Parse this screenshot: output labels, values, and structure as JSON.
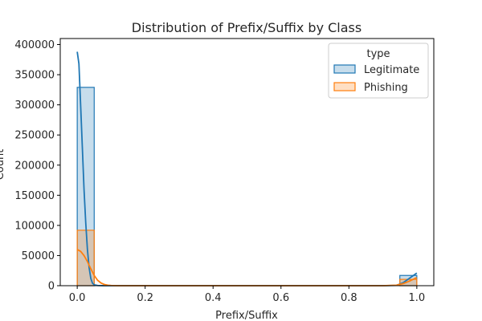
{
  "chart_data": {
    "type": "bar",
    "subtype": "histogram-with-kde",
    "title": "Distribution of Prefix/Suffix by Class",
    "xlabel": "Prefix/Suffix",
    "ylabel": "Count",
    "xlim": [
      -0.05,
      1.05
    ],
    "ylim": [
      0,
      410000
    ],
    "x_ticks": [
      0.0,
      0.2,
      0.4,
      0.6,
      0.8,
      1.0
    ],
    "x_tick_labels": [
      "0.0",
      "0.2",
      "0.4",
      "0.6",
      "0.8",
      "1.0"
    ],
    "y_ticks": [
      0,
      50000,
      100000,
      150000,
      200000,
      250000,
      300000,
      350000,
      400000
    ],
    "y_tick_labels": [
      "0",
      "50000",
      "100000",
      "150000",
      "200000",
      "250000",
      "300000",
      "350000",
      "400000"
    ],
    "bin_width": 0.05,
    "legend": {
      "title": "type",
      "placement": "top-right"
    },
    "series": [
      {
        "name": "Legitimate",
        "color": "#1f77b4",
        "bins": [
          {
            "x0": 0.0,
            "x1": 0.05,
            "count": 329000
          },
          {
            "x0": 0.95,
            "x1": 1.0,
            "count": 17000
          }
        ],
        "kde": {
          "x": [
            0.0,
            0.005,
            0.01,
            0.015,
            0.02,
            0.025,
            0.03,
            0.035,
            0.04,
            0.045,
            0.05,
            0.06,
            0.08,
            0.1,
            0.5,
            0.9,
            0.94,
            0.96,
            0.98,
            1.0
          ],
          "y": [
            388000,
            368000,
            300000,
            230000,
            160000,
            105000,
            60000,
            30000,
            12000,
            4000,
            1500,
            300,
            0,
            0,
            0,
            0,
            500,
            5000,
            13000,
            21000
          ]
        }
      },
      {
        "name": "Phishing",
        "color": "#ff7f0e",
        "bins": [
          {
            "x0": 0.0,
            "x1": 0.05,
            "count": 92000
          },
          {
            "x0": 0.95,
            "x1": 1.0,
            "count": 10500
          }
        ],
        "kde": {
          "x": [
            0.0,
            0.01,
            0.02,
            0.03,
            0.04,
            0.05,
            0.06,
            0.07,
            0.08,
            0.09,
            0.1,
            0.12,
            0.15,
            0.5,
            0.9,
            0.94,
            0.96,
            0.98,
            1.0
          ],
          "y": [
            60000,
            57000,
            50000,
            40000,
            28000,
            17000,
            9000,
            4500,
            2000,
            800,
            300,
            0,
            0,
            0,
            0,
            800,
            3500,
            8000,
            13500
          ]
        }
      }
    ]
  }
}
